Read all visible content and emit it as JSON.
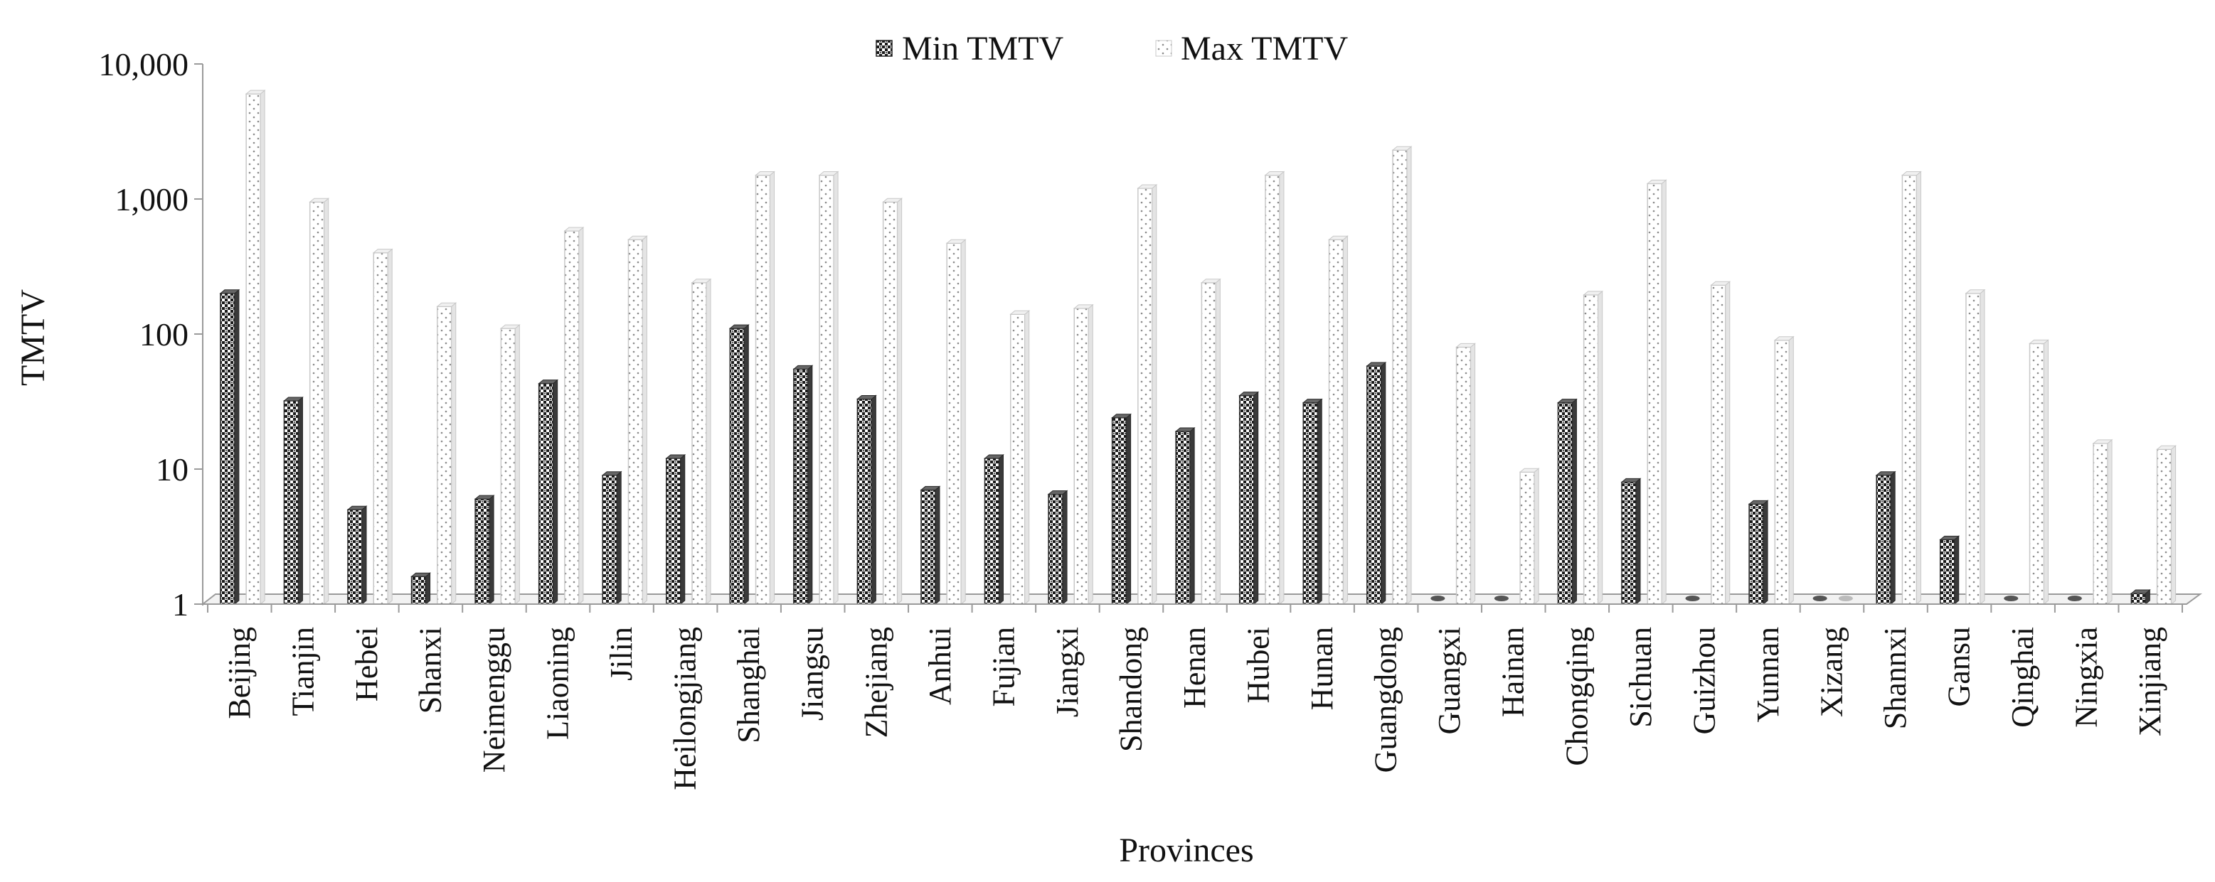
{
  "chart_data": {
    "type": "bar",
    "title": "",
    "xlabel": "Provinces",
    "ylabel": "TMTV",
    "y_scale": "log",
    "ylim": [
      1,
      10000
    ],
    "y_ticks": [
      {
        "value": 1,
        "label": "1"
      },
      {
        "value": 10,
        "label": "10"
      },
      {
        "value": 100,
        "label": "100"
      },
      {
        "value": 1000,
        "label": "1,000"
      },
      {
        "value": 10000,
        "label": "10,000"
      }
    ],
    "legend": {
      "placement": "top-center"
    },
    "grid": false,
    "categories": [
      "Beijing",
      "Tianjin",
      "Hebei",
      "Shanxi",
      "Neimenggu",
      "Liaoning",
      "Jilin",
      "Heilongjiang",
      "Shanghai",
      "Jiangsu",
      "Zhejiang",
      "Anhui",
      "Fujian",
      "Jiangxi",
      "Shandong",
      "Henan",
      "Hubei",
      "Hunan",
      "Guangdong",
      "Guangxi",
      "Hainan",
      "Chongqing",
      "Sichuan",
      "Guizhou",
      "Yunnan",
      "Xizang",
      "Shannxi",
      "Gansu",
      "Qinghai",
      "Ningxia",
      "Xinjiang"
    ],
    "series": [
      {
        "name": "Min TMTV",
        "colors": {
          "fill": "#222222",
          "background": "#ffffff"
        },
        "values": [
          200,
          32,
          5,
          1.6,
          6,
          43,
          9,
          12,
          110,
          55,
          33,
          7,
          12,
          6.5,
          24,
          19,
          35,
          31,
          58,
          1,
          1,
          31,
          8,
          1,
          5.5,
          1,
          9,
          3,
          1,
          1,
          1.2
        ]
      },
      {
        "name": "Max TMTV",
        "colors": {
          "fill": "#9a9a9a",
          "background": "#ffffff"
        },
        "values": [
          6000,
          950,
          400,
          160,
          110,
          580,
          500,
          240,
          1500,
          1500,
          950,
          470,
          140,
          155,
          1200,
          240,
          1500,
          500,
          2300,
          80,
          9.5,
          195,
          1300,
          230,
          90,
          1,
          1500,
          200,
          85,
          15.5,
          14
        ]
      }
    ]
  }
}
